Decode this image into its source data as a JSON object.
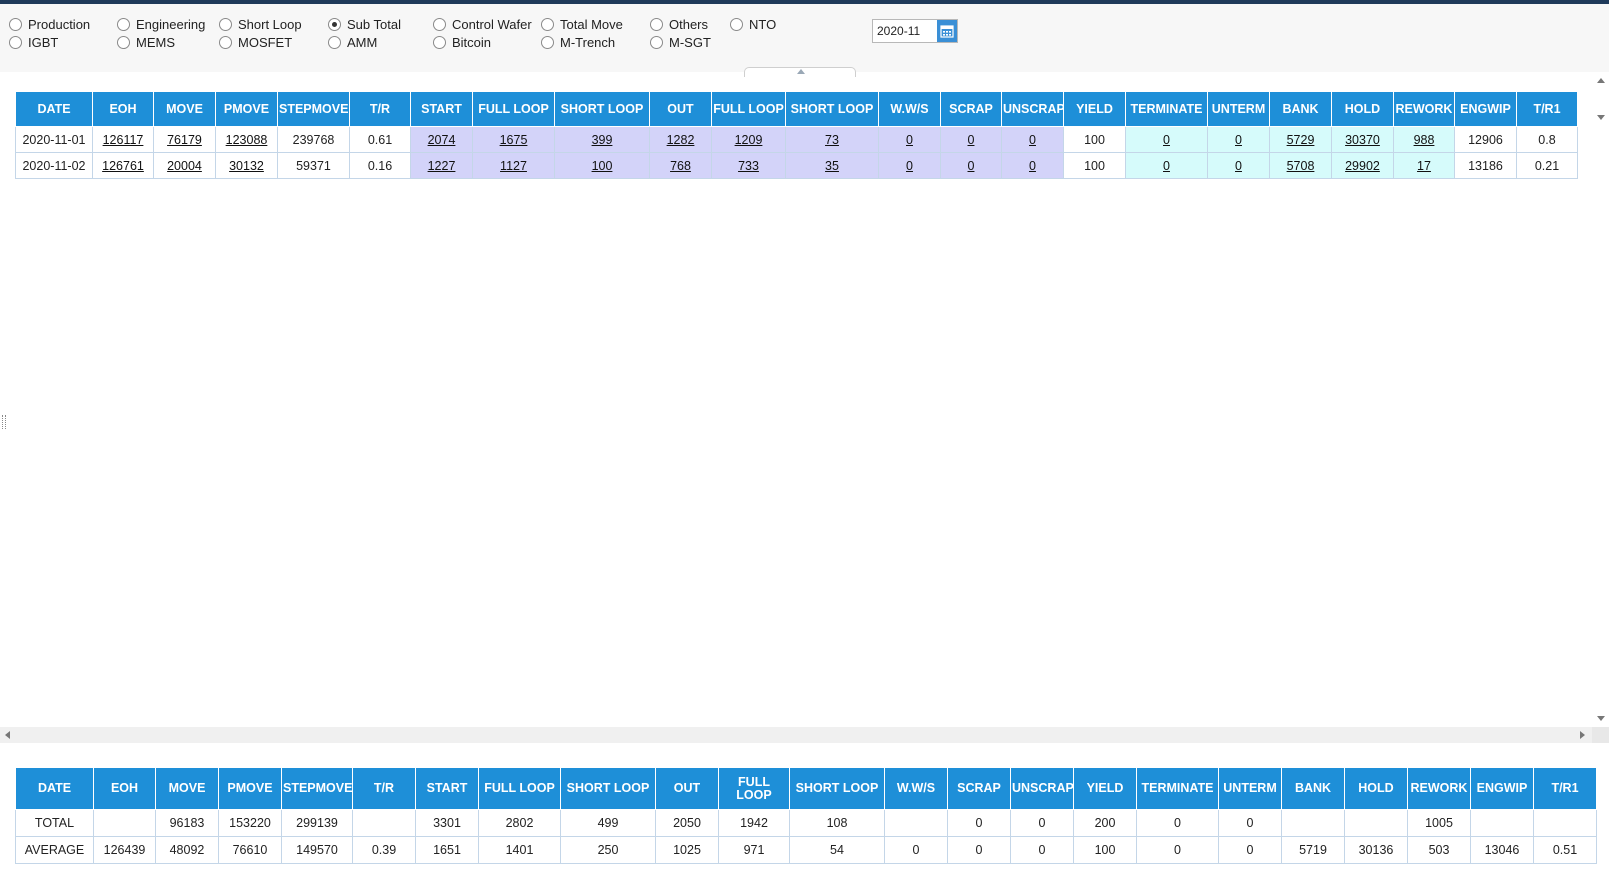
{
  "filters": {
    "row1": [
      {
        "label": "Production",
        "checked": false
      },
      {
        "label": "Engineering",
        "checked": false
      },
      {
        "label": "Short Loop",
        "checked": false
      },
      {
        "label": "Sub Total",
        "checked": true
      },
      {
        "label": "Control Wafer",
        "checked": false
      },
      {
        "label": "Total Move",
        "checked": false
      },
      {
        "label": "Others",
        "checked": false
      },
      {
        "label": "NTO",
        "checked": false
      }
    ],
    "row2": [
      {
        "label": "IGBT",
        "checked": false
      },
      {
        "label": "MEMS",
        "checked": false
      },
      {
        "label": "MOSFET",
        "checked": false
      },
      {
        "label": "AMM",
        "checked": false
      },
      {
        "label": "Bitcoin",
        "checked": false
      },
      {
        "label": "M-Trench",
        "checked": false
      },
      {
        "label": "M-SGT",
        "checked": false
      }
    ]
  },
  "date_picker": {
    "value": "2020-11",
    "icon": "calendar-icon"
  },
  "columns": [
    "DATE",
    "EOH",
    "MOVE",
    "PMOVE",
    "STEPMOVE",
    "T/R",
    "START",
    "FULL LOOP",
    "SHORT LOOP",
    "OUT",
    "FULL LOOP",
    "SHORT LOOP",
    "W.W/S",
    "SCRAP",
    "UNSCRAP",
    "YIELD",
    "TERMINATE",
    "UNTERM",
    "BANK",
    "HOLD",
    "REWORK",
    "ENGWIP",
    "T/R1"
  ],
  "colors": {
    "header": "#1e8fd8",
    "group_b": "#d3d3f9",
    "group_c": "#d6fbfb"
  },
  "main_rows": [
    [
      "2020-11-01",
      "126117",
      "76179",
      "123088",
      "239768",
      "0.61",
      "2074",
      "1675",
      "399",
      "1282",
      "1209",
      "73",
      "0",
      "0",
      "0",
      "100",
      "0",
      "0",
      "5729",
      "30370",
      "988",
      "12906",
      "0.8"
    ],
    [
      "2020-11-02",
      "126761",
      "20004",
      "30132",
      "59371",
      "0.16",
      "1227",
      "1127",
      "100",
      "768",
      "733",
      "35",
      "0",
      "0",
      "0",
      "100",
      "0",
      "0",
      "5708",
      "29902",
      "17",
      "13186",
      "0.21"
    ]
  ],
  "summary_rows": [
    [
      "TOTAL",
      "",
      "96183",
      "153220",
      "299139",
      "",
      "3301",
      "2802",
      "499",
      "2050",
      "1942",
      "108",
      "",
      "0",
      "0",
      "200",
      "0",
      "0",
      "",
      "",
      "1005",
      "",
      ""
    ],
    [
      "AVERAGE",
      "126439",
      "48092",
      "76610",
      "149570",
      "0.39",
      "1651",
      "1401",
      "250",
      "1025",
      "971",
      "54",
      "0",
      "0",
      "0",
      "100",
      "0",
      "0",
      "5719",
      "30136",
      "503",
      "13046",
      "0.51"
    ]
  ]
}
